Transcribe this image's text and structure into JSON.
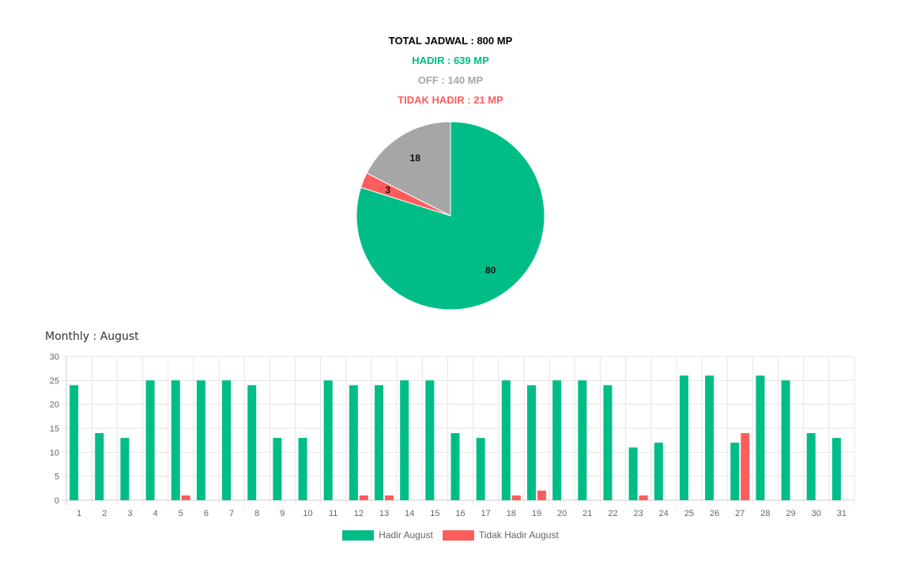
{
  "summary": {
    "total": "TOTAL JADWAL : 800 MP",
    "hadir": "HADIR : 639 MP",
    "off": "OFF : 140 MP",
    "tidak_hadir": "TIDAK HADIR : 21 MP"
  },
  "colors": {
    "hadir": "#00bd87",
    "off": "#a6a6a6",
    "tidak_hadir": "#ff5c5c",
    "total": "#000000"
  },
  "chart_data": [
    {
      "type": "pie",
      "slices": [
        {
          "label": "80",
          "value": 639
        },
        {
          "label": "3",
          "value": 21
        },
        {
          "label": "18",
          "value": 140
        }
      ]
    },
    {
      "type": "bar",
      "title": "Monthly : August",
      "categories": [
        "1",
        "2",
        "3",
        "4",
        "5",
        "6",
        "7",
        "8",
        "9",
        "10",
        "11",
        "12",
        "13",
        "14",
        "15",
        "16",
        "17",
        "18",
        "19",
        "20",
        "21",
        "22",
        "23",
        "24",
        "25",
        "26",
        "27",
        "28",
        "29",
        "30",
        "31"
      ],
      "series": [
        {
          "name": "Hadir August",
          "values": [
            24,
            14,
            13,
            25,
            25,
            25,
            25,
            24,
            13,
            13,
            25,
            24,
            24,
            25,
            25,
            14,
            13,
            25,
            24,
            25,
            25,
            24,
            11,
            12,
            26,
            26,
            12,
            26,
            25,
            14,
            13
          ]
        },
        {
          "name": "Tidak Hadir August",
          "values": [
            0,
            0,
            0,
            0,
            1,
            0,
            0,
            0,
            0,
            0,
            0,
            1,
            1,
            0,
            0,
            0,
            0,
            1,
            2,
            0,
            0,
            0,
            1,
            0,
            0,
            0,
            14,
            0,
            0,
            0,
            0
          ]
        }
      ],
      "ylim": [
        0,
        30
      ],
      "yticks": [
        0,
        5,
        10,
        15,
        20,
        25,
        30
      ],
      "grid": true,
      "legend": "bottom"
    }
  ]
}
